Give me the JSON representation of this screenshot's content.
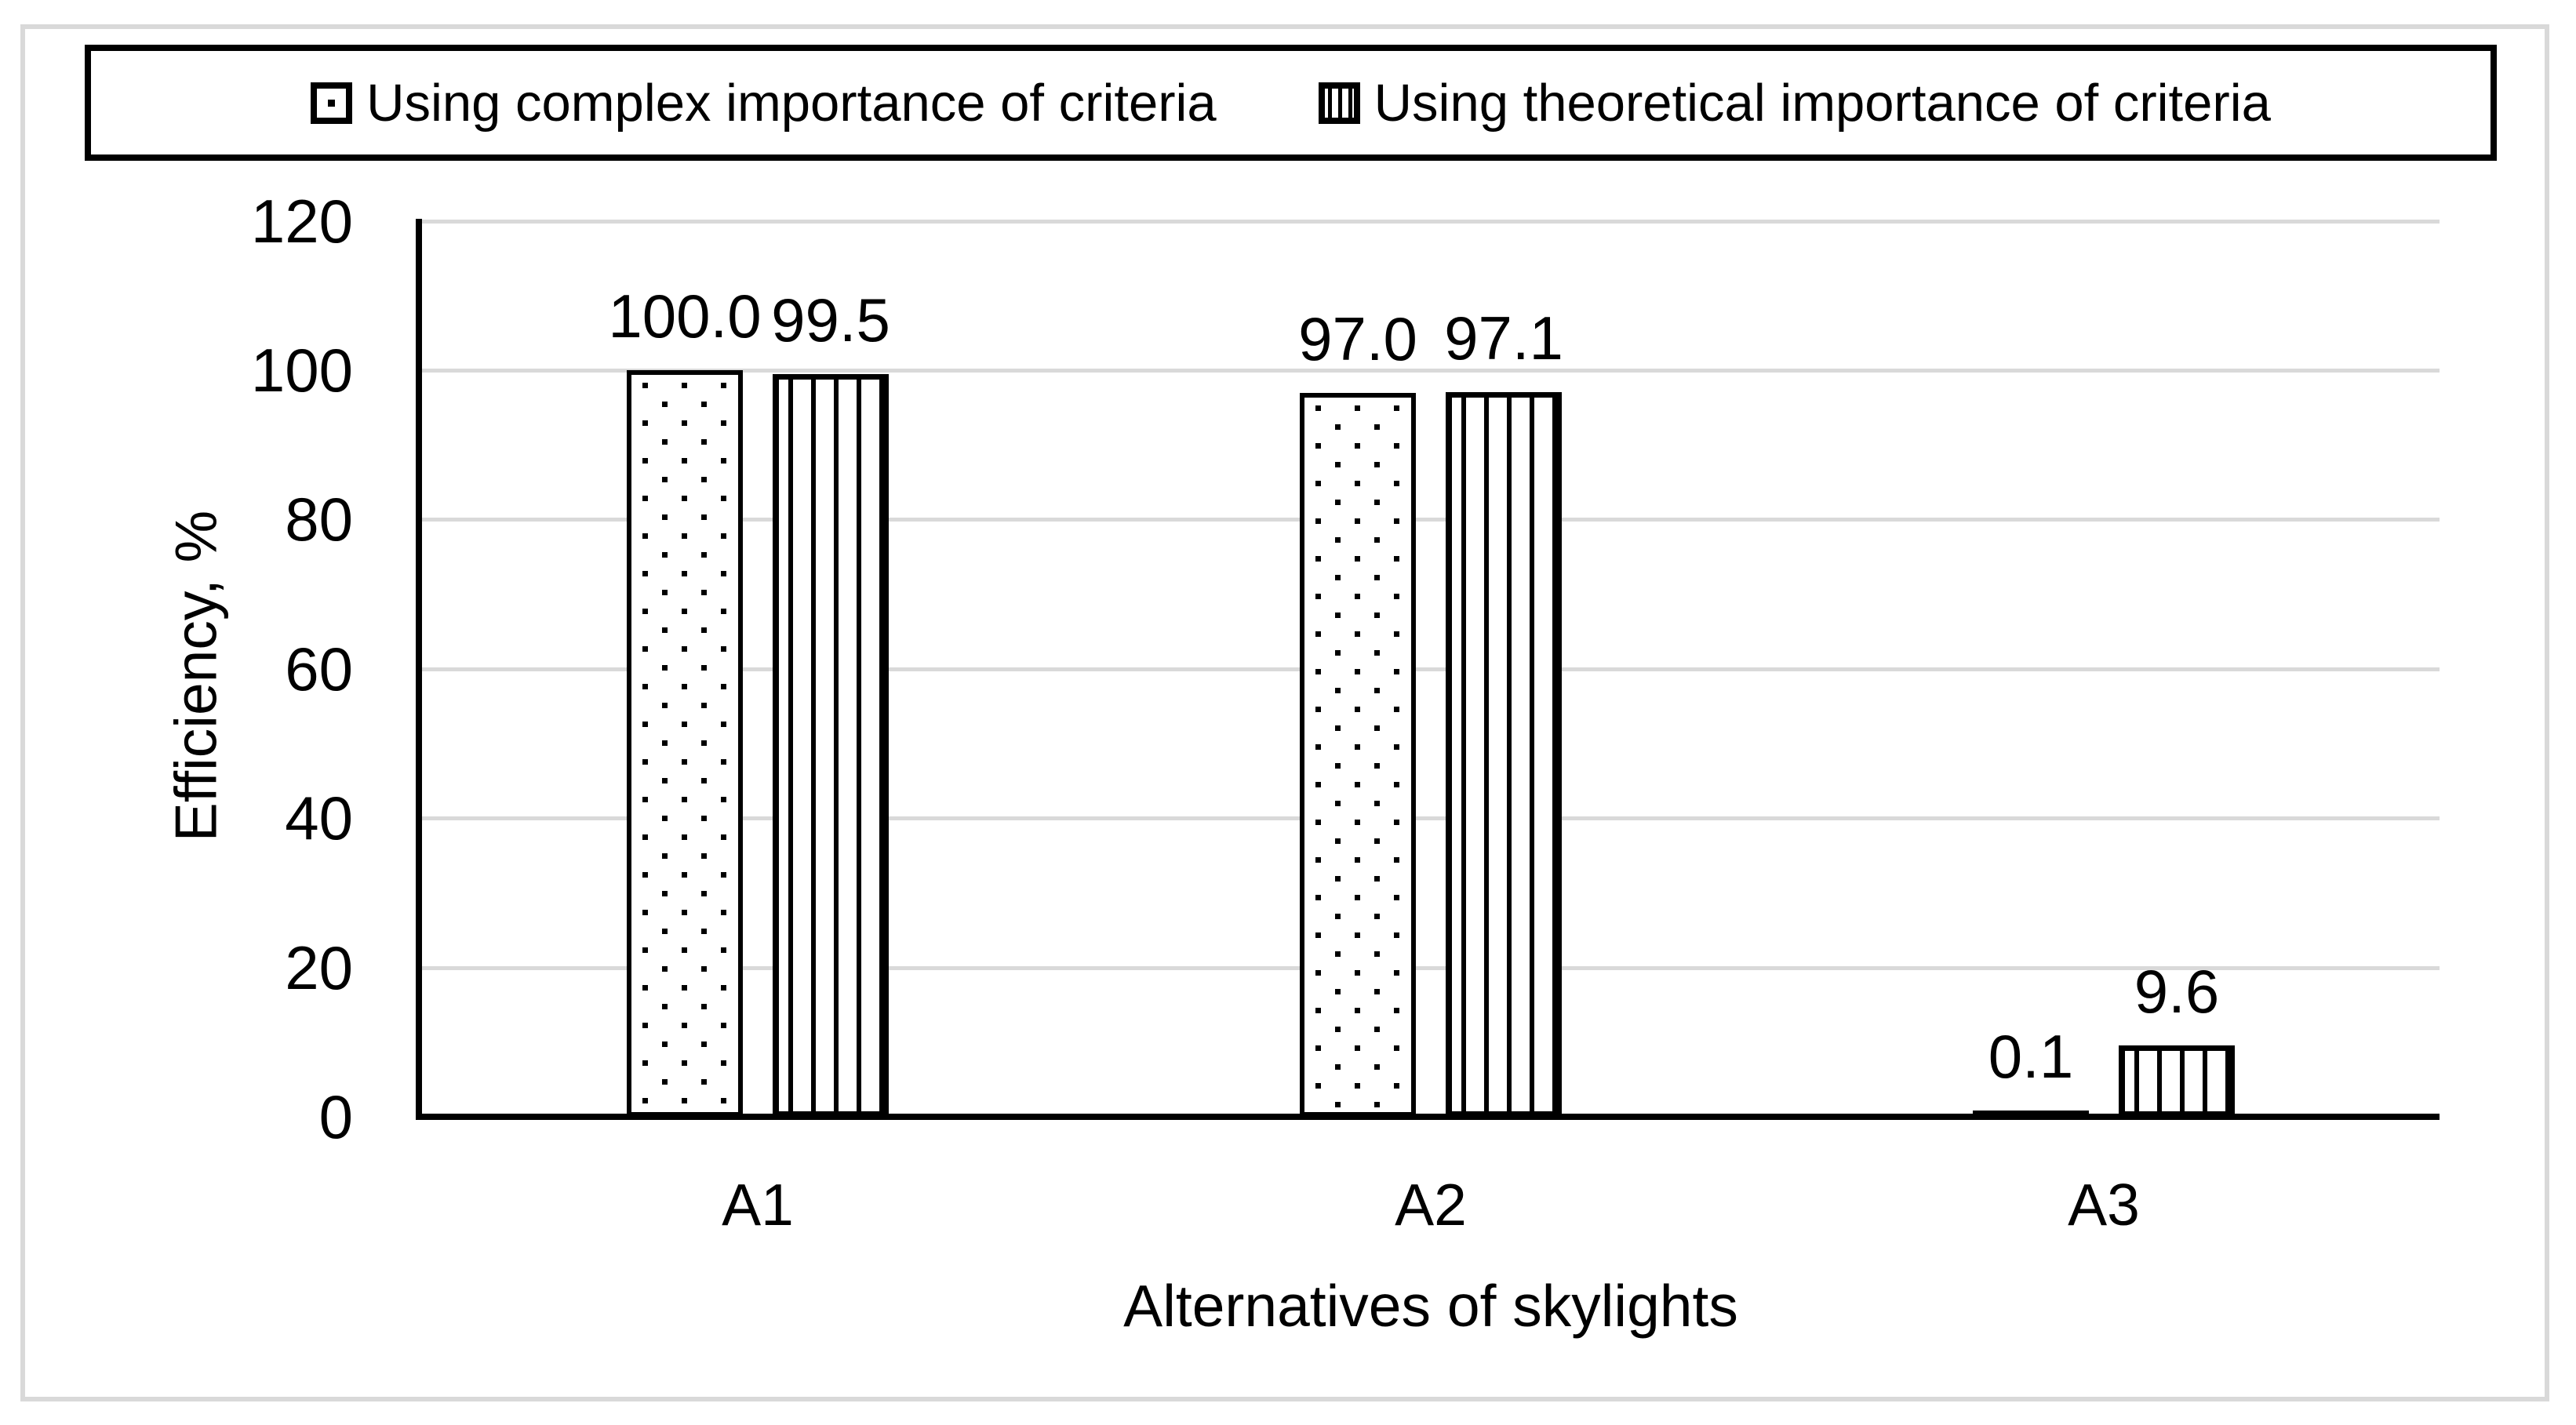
{
  "chart_data": {
    "type": "bar",
    "categories": [
      "A1",
      "A2",
      "A3"
    ],
    "series": [
      {
        "name": "Using complex importance of criteria",
        "pattern": "dots",
        "values": [
          100.0,
          97.0,
          0.1
        ],
        "labels": [
          "100.0",
          "97.0",
          "0.1"
        ]
      },
      {
        "name": "Using theoretical importance of criteria",
        "pattern": "stripes",
        "values": [
          99.5,
          97.1,
          9.6
        ],
        "labels": [
          "99.5",
          "97.1",
          "9.6"
        ]
      }
    ],
    "xlabel": "Alternatives of skylights",
    "ylabel": "Efficiency, %",
    "ylim": [
      0,
      120
    ],
    "ytick_interval": 20,
    "yticks": [
      "0",
      "20",
      "40",
      "60",
      "80",
      "100",
      "120"
    ],
    "grid": "horizontal-only",
    "legend_position": "top",
    "colors": {
      "bar_fill": "#ffffff",
      "bar_border": "#000000",
      "gridline": "#d9d9d9",
      "frame_border": "#d9d9d9",
      "text": "#000000"
    }
  }
}
